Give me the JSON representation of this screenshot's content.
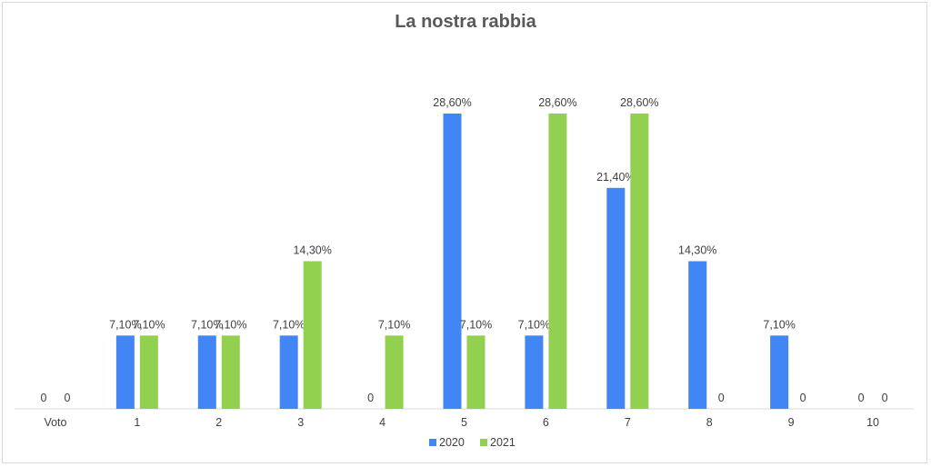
{
  "chart_data": {
    "type": "bar",
    "title": "La nostra rabbia",
    "categories": [
      "Voto",
      "1",
      "2",
      "3",
      "4",
      "5",
      "6",
      "7",
      "8",
      "9",
      "10"
    ],
    "series": [
      {
        "name": "2020",
        "color": "#4285f4",
        "values": [
          0,
          7.1,
          7.1,
          7.1,
          0,
          28.6,
          7.1,
          21.4,
          14.3,
          7.1,
          0
        ],
        "labels": [
          "0",
          "7,10%",
          "7,10%",
          "7,10%",
          "0",
          "28,60%",
          "7,10%",
          "21,40%",
          "14,30%",
          "7,10%",
          "0"
        ]
      },
      {
        "name": "2021",
        "color": "#92d050",
        "values": [
          0,
          7.1,
          7.1,
          14.3,
          7.1,
          7.1,
          28.6,
          28.6,
          0,
          0,
          0
        ],
        "labels": [
          "0",
          "7,10%",
          "7,10%",
          "14,30%",
          "7,10%",
          "7,10%",
          "28,60%",
          "28,60%",
          "0",
          "0",
          "0"
        ]
      }
    ],
    "ylim": [
      0,
      30
    ],
    "grid": false,
    "legend": "bottom"
  }
}
